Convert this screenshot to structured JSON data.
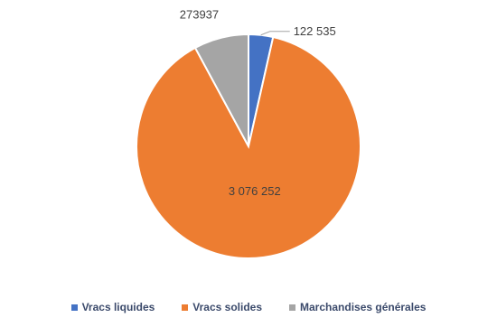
{
  "chart_data": {
    "type": "pie",
    "categories": [
      "Vracs liquides",
      "Vracs solides",
      "Marchandises générales"
    ],
    "values": [
      122535,
      3076252,
      273937
    ],
    "value_labels": [
      "122 535",
      "3 076 252",
      "273937"
    ],
    "colors": [
      "#4472c4",
      "#ed7d31",
      "#a5a5a5"
    ],
    "legend_position": "bottom"
  }
}
